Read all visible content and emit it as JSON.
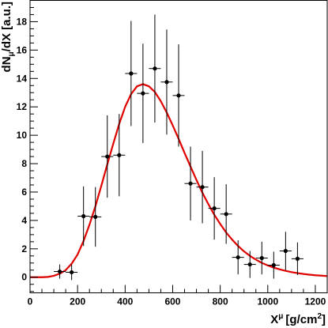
{
  "chart_data": {
    "type": "scatter",
    "xlabel": "X",
    "xlabel_sup": "μ",
    "xlabel_unit": "[g/cm",
    "xlabel_unit_sup": "2",
    "xlabel_close": "]",
    "ylabel": "dN",
    "ylabel_sub": "μ",
    "ylabel_rest": "/dX [a.u.]",
    "xlim": [
      0,
      1250
    ],
    "ylim": [
      -1.1,
      19.5
    ],
    "xticks": [
      0,
      200,
      400,
      600,
      800,
      1000,
      1200
    ],
    "yticks": [
      0,
      2,
      4,
      6,
      8,
      10,
      12,
      14,
      16,
      18
    ],
    "grid": false,
    "series": [
      {
        "kind": "data-points",
        "color": "#000000",
        "points": [
          {
            "x": 125,
            "y": 0.4,
            "xerr": 25,
            "yerr": 0.5
          },
          {
            "x": 175,
            "y": 0.35,
            "xerr": 25,
            "yerr": 0.55
          },
          {
            "x": 225,
            "y": 4.3,
            "xerr": 25,
            "yerr": 2.1
          },
          {
            "x": 275,
            "y": 4.25,
            "xerr": 25,
            "yerr": 2.1
          },
          {
            "x": 325,
            "y": 8.5,
            "xerr": 25,
            "yerr": 2.9
          },
          {
            "x": 375,
            "y": 8.6,
            "xerr": 25,
            "yerr": 2.9
          },
          {
            "x": 425,
            "y": 14.35,
            "xerr": 25,
            "yerr": 3.7
          },
          {
            "x": 475,
            "y": 12.95,
            "xerr": 25,
            "yerr": 3.5
          },
          {
            "x": 525,
            "y": 14.7,
            "xerr": 25,
            "yerr": 3.8
          },
          {
            "x": 575,
            "y": 13.75,
            "xerr": 25,
            "yerr": 3.7
          },
          {
            "x": 625,
            "y": 12.8,
            "xerr": 25,
            "yerr": 3.6
          },
          {
            "x": 675,
            "y": 6.6,
            "xerr": 25,
            "yerr": 2.6
          },
          {
            "x": 725,
            "y": 6.35,
            "xerr": 25,
            "yerr": 2.55
          },
          {
            "x": 775,
            "y": 4.85,
            "xerr": 25,
            "yerr": 2.2
          },
          {
            "x": 825,
            "y": 4.45,
            "xerr": 25,
            "yerr": 2.1
          },
          {
            "x": 875,
            "y": 1.4,
            "xerr": 25,
            "yerr": 1.2
          },
          {
            "x": 925,
            "y": 0.9,
            "xerr": 25,
            "yerr": 0.95
          },
          {
            "x": 975,
            "y": 1.35,
            "xerr": 25,
            "yerr": 1.15
          },
          {
            "x": 1025,
            "y": 0.85,
            "xerr": 25,
            "yerr": 0.95
          },
          {
            "x": 1075,
            "y": 1.85,
            "xerr": 25,
            "yerr": 1.35
          },
          {
            "x": 1125,
            "y": 1.3,
            "xerr": 25,
            "yerr": 1.15
          }
        ]
      },
      {
        "kind": "fit-curve",
        "color": "#e00000",
        "x": [
          0,
          25,
          50,
          75,
          100,
          125,
          150,
          175,
          200,
          225,
          250,
          275,
          300,
          325,
          350,
          375,
          400,
          425,
          450,
          475,
          500,
          525,
          550,
          575,
          600,
          625,
          650,
          675,
          700,
          725,
          750,
          775,
          800,
          825,
          850,
          875,
          900,
          925,
          950,
          975,
          1000,
          1025,
          1050,
          1075,
          1100,
          1125,
          1150,
          1175,
          1200,
          1225,
          1250
        ],
        "y": [
          0,
          0,
          0,
          0.02,
          0.1,
          0.25,
          0.5,
          0.95,
          1.6,
          2.55,
          3.7,
          5.0,
          6.45,
          7.95,
          9.4,
          10.8,
          12.0,
          12.9,
          13.45,
          13.6,
          13.45,
          13.05,
          12.4,
          11.6,
          10.7,
          9.75,
          8.75,
          7.8,
          6.85,
          5.95,
          5.15,
          4.4,
          3.75,
          3.15,
          2.65,
          2.2,
          1.82,
          1.5,
          1.24,
          1.01,
          0.83,
          0.68,
          0.55,
          0.45,
          0.36,
          0.29,
          0.23,
          0.18,
          0.14,
          0.11,
          0.08
        ]
      }
    ]
  }
}
